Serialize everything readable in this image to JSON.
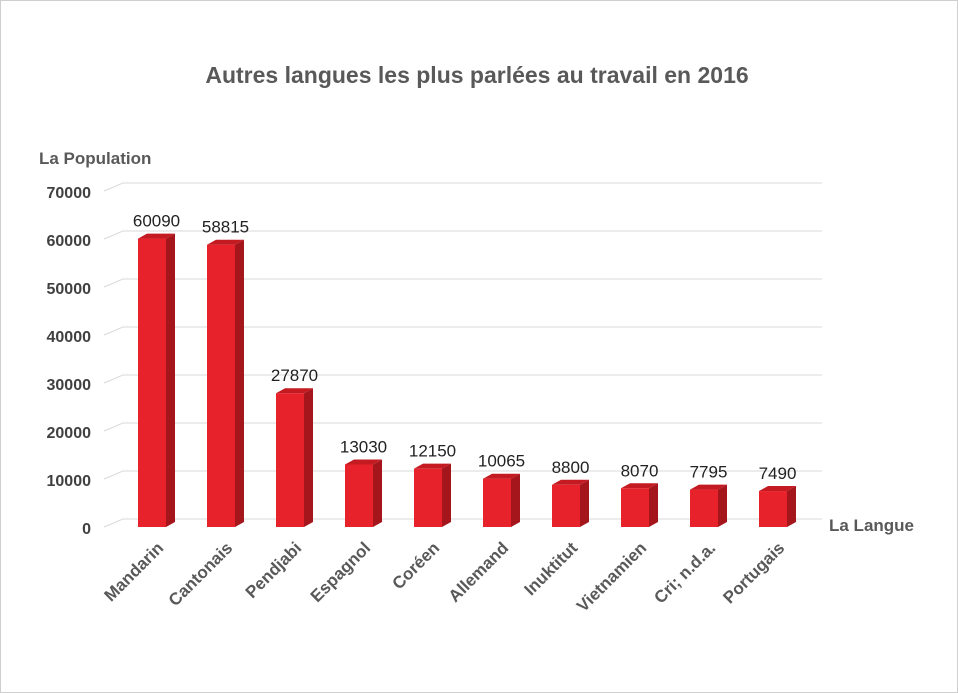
{
  "chart_data": {
    "type": "bar",
    "title": "Autres langues les plus parlées au travail en 2016",
    "ylabel": "La Population",
    "xlabel": "La Langue",
    "categories": [
      "Mandarin",
      "Cantonais",
      "Pendjabi",
      "Espagnol",
      "Coréen",
      "Allemand",
      "Inuktitut",
      "Vietnamien",
      "Cri; n.d.a.",
      "Portugais"
    ],
    "values": [
      60090,
      58815,
      27870,
      13030,
      12150,
      10065,
      8800,
      8070,
      7795,
      7490
    ],
    "value_labels": [
      "60090",
      "58815",
      "27870",
      "13030",
      "12150",
      "10065",
      "8800",
      "8070",
      "7795",
      "7490"
    ],
    "ylim": [
      0,
      70000
    ],
    "yticks": [
      0,
      10000,
      20000,
      30000,
      40000,
      50000,
      60000,
      70000
    ],
    "ytick_labels": [
      "0",
      "10000",
      "20000",
      "30000",
      "40000",
      "50000",
      "60000",
      "70000"
    ],
    "grid": true,
    "legend": "none",
    "bar_color": "#e8222a",
    "bar_side_color": "#a5161c",
    "bar_top_color": "#c41b22"
  }
}
